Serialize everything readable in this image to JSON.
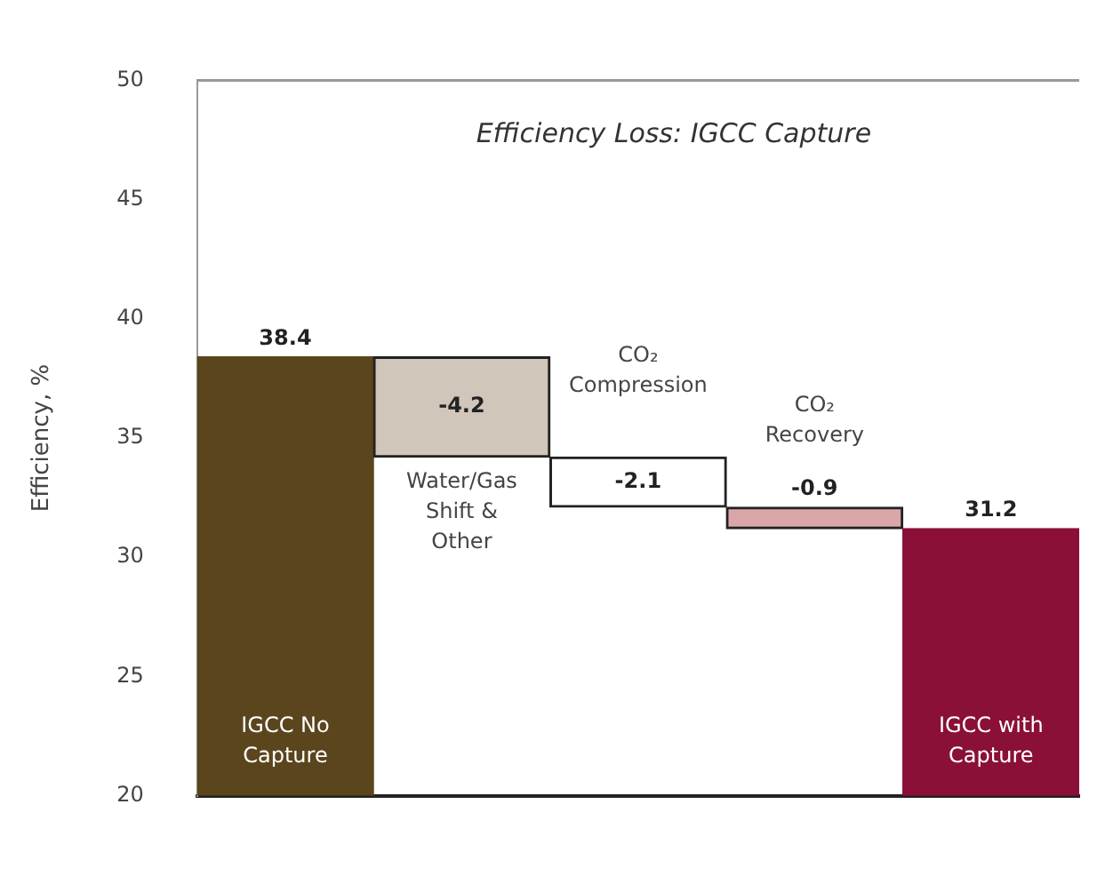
{
  "chart_data": {
    "type": "bar",
    "title": "Efficiency Loss: IGCC Capture",
    "ylabel": "Efficiency, %",
    "categories": [
      "IGCC No Capture",
      "Water/Gas Shift & Other",
      "CO₂ Compression",
      "CO₂ Recovery",
      "IGCC with Capture"
    ],
    "values": [
      38.4,
      -4.2,
      -2.1,
      -0.9,
      31.2
    ],
    "base": [
      null,
      38.4,
      34.2,
      32.1,
      null
    ],
    "colors": [
      "#5a451d",
      "#d0c6b9",
      "#ffffff",
      "#d9a6aa",
      "#8a1037"
    ],
    "ylim": [
      20,
      50
    ],
    "yticks": [
      20,
      25,
      30,
      35,
      40,
      45,
      50
    ],
    "data_labels": true,
    "tick_labels": "y"
  }
}
